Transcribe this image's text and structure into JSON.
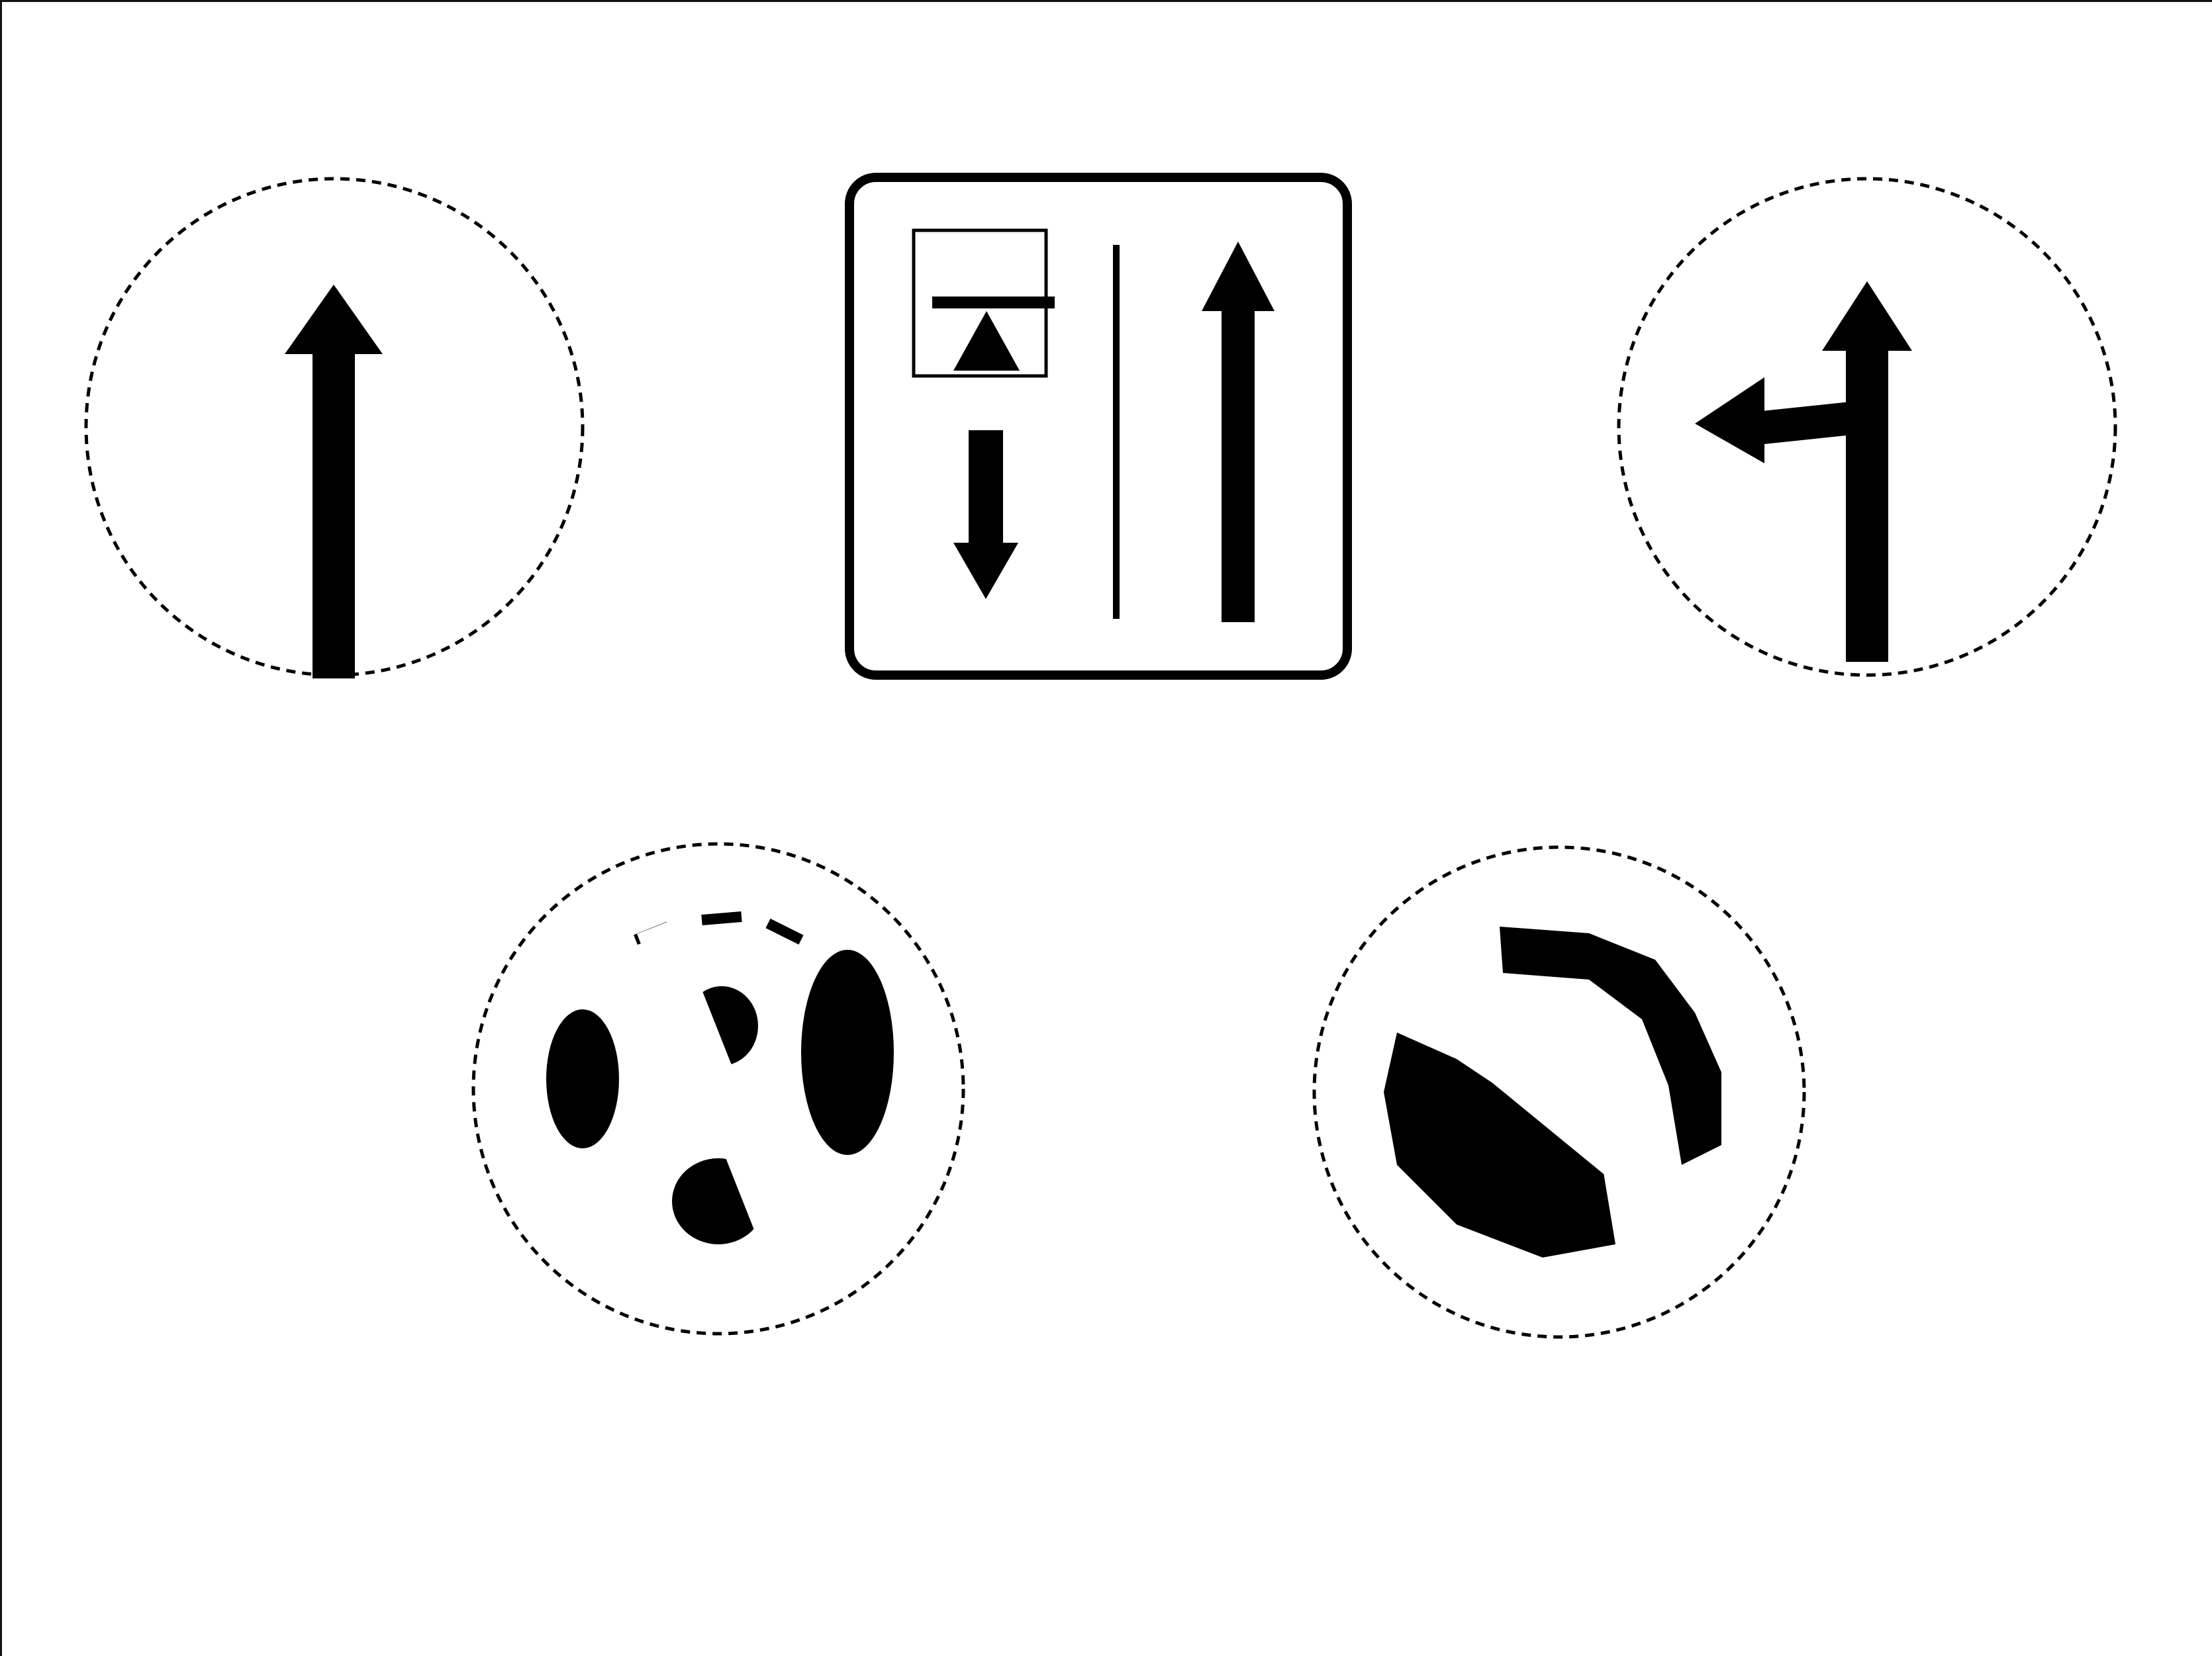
{
  "page": {
    "description_free": true
  },
  "colors": {
    "ink": "#000000",
    "background": "#ffffff",
    "frame": "#111111"
  },
  "signs": [
    {
      "id": "straight-ahead-only",
      "shape": "circle",
      "icon": "arrow-up-icon"
    },
    {
      "id": "lane-direction-board",
      "shape": "rounded-square",
      "icon": "lane-arrows-icon"
    },
    {
      "id": "straight-or-left-turn",
      "shape": "circle",
      "icon": "arrow-up-left-branch-icon"
    },
    {
      "id": "no-u-turn-variant-a",
      "shape": "circle-prohibition",
      "icon": "no-u-turn-icon"
    },
    {
      "id": "no-u-turn-variant-b",
      "shape": "circle-prohibition",
      "icon": "no-u-turn-icon"
    }
  ]
}
